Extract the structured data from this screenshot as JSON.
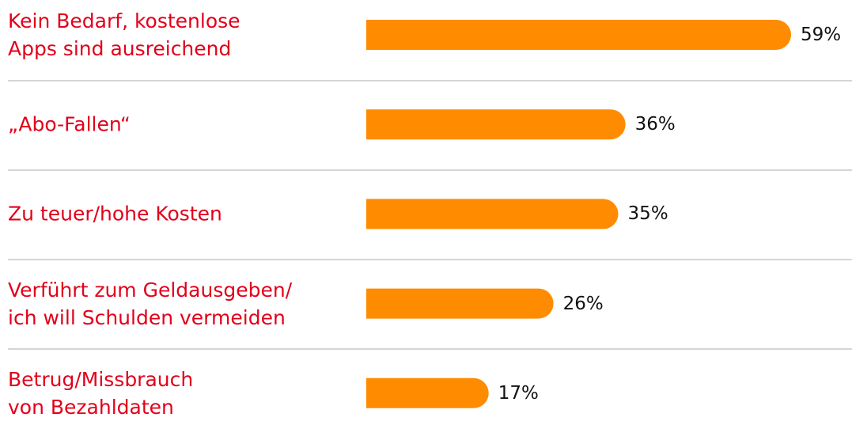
{
  "chart_data": {
    "type": "bar",
    "orientation": "horizontal",
    "categories": [
      "Kein Bedarf, kostenlose\nApps sind ausreichend",
      "„Abo-Fallen“",
      "Zu teuer/hohe Kosten",
      "Verführt zum Geldausgeben/\nich will Schulden vermeiden",
      "Betrug/Missbrauch\nvon Bezahldaten"
    ],
    "values": [
      59,
      36,
      35,
      26,
      17
    ],
    "value_labels": [
      "59%",
      "36%",
      "35%",
      "26%",
      "17%"
    ],
    "color": "#ff8c00"
  }
}
